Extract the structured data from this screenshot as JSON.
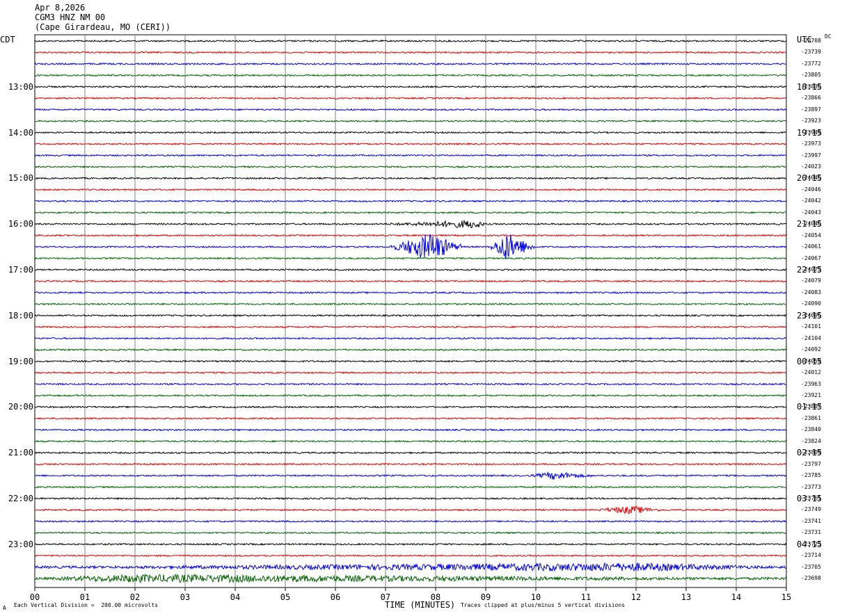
{
  "header": {
    "date": "Apr 8,2026",
    "station": "CGM3 HNZ NM 00",
    "location": "(Cape Girardeau, MO (CERI))"
  },
  "labels": {
    "left_timezone": "CDT",
    "right_timezone": "UTC",
    "dc_label": "DC",
    "corner_mark": "A"
  },
  "footer": {
    "division_note": "Each Vertical Division =  200.00 microvolts",
    "clip_note": "Traces clipped at plus/minus 5 vertical divisions"
  },
  "chart_data": {
    "type": "line",
    "xlabel": "TIME (MINUTES)",
    "xlim": [
      0,
      15
    ],
    "x_ticks": [
      "00",
      "01",
      "02",
      "03",
      "04",
      "05",
      "06",
      "07",
      "08",
      "09",
      "10",
      "11",
      "12",
      "13",
      "14",
      "15"
    ],
    "grid": true,
    "trace_colors": [
      "#000000",
      "#e60000",
      "#0000e6",
      "#006400"
    ],
    "left_hour_labels": [
      "13:00",
      "14:00",
      "15:00",
      "16:00",
      "17:00",
      "18:00",
      "19:00",
      "20:00",
      "21:00",
      "22:00",
      "23:00"
    ],
    "right_hour_labels": [
      "18:15",
      "19:15",
      "20:15",
      "21:15",
      "22:15",
      "23:15",
      "00:15",
      "01:15",
      "02:15",
      "03:15",
      "04:15"
    ],
    "dc_offsets": [
      -23708,
      -23739,
      -23772,
      -23805,
      -23836,
      -23866,
      -23897,
      -23923,
      -23949,
      -23973,
      -23997,
      -24023,
      -24046,
      -24046,
      -24042,
      -24043,
      -24046,
      -24054,
      -24061,
      -24067,
      -24073,
      -24079,
      -24083,
      -24090,
      -24096,
      -24101,
      -24104,
      -24092,
      -24059,
      -24012,
      -23963,
      -23921,
      -23887,
      -23861,
      -23840,
      -23824,
      -23809,
      -23797,
      -23785,
      -23773,
      -23761,
      -23749,
      -23741,
      -23731,
      -23723,
      -23714,
      -23705,
      -23698
    ],
    "events": [
      {
        "trace": 18,
        "start_min": 7.1,
        "end_min": 8.5,
        "peak_min": 7.9,
        "amplitude": 4
      },
      {
        "trace": 18,
        "start_min": 9.1,
        "end_min": 10.0,
        "peak_min": 9.4,
        "amplitude": 4
      },
      {
        "trace": 16,
        "start_min": 7.1,
        "end_min": 9.0,
        "peak_min": 8.8,
        "amplitude": 1
      },
      {
        "trace": 38,
        "start_min": 9.9,
        "end_min": 11.1,
        "peak_min": 10.4,
        "amplitude": 1
      },
      {
        "trace": 41,
        "start_min": 11.2,
        "end_min": 12.5,
        "peak_min": 11.9,
        "amplitude": 1
      },
      {
        "trace": 46,
        "start_min": 0,
        "end_min": 15,
        "peak_min": 12,
        "amplitude": 1
      },
      {
        "trace": 47,
        "start_min": 0,
        "end_min": 15,
        "peak_min": 2,
        "amplitude": 1
      }
    ]
  }
}
